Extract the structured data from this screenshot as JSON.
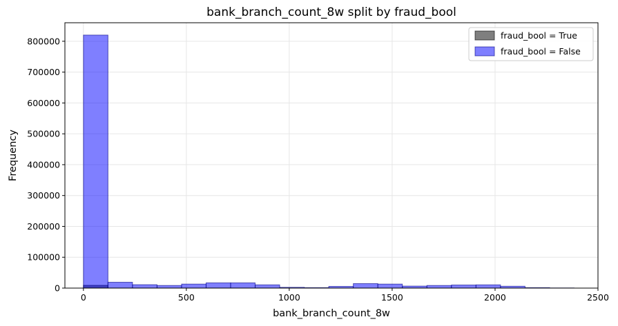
{
  "chart_data": {
    "type": "bar",
    "title": "bank_branch_count_8w split by fraud_bool",
    "xlabel": "bank_branch_count_8w",
    "ylabel": "Frequency",
    "xlim": [
      -90,
      2500
    ],
    "ylim": [
      0,
      860000
    ],
    "xticks": [
      0,
      500,
      1000,
      1500,
      2000,
      2500
    ],
    "yticks": [
      0,
      100000,
      200000,
      300000,
      400000,
      500000,
      600000,
      700000,
      800000
    ],
    "grid": true,
    "legend_position": "top-right",
    "bin_edges": [
      0,
      119.2,
      238.4,
      357.6,
      476.8,
      596,
      715.2,
      834.4,
      953.6,
      1072.8,
      1192,
      1311.2,
      1430.4,
      1549.6,
      1668.8,
      1788,
      1907.2,
      2026.4,
      2145.6,
      2264.8,
      2384
    ],
    "series": [
      {
        "name": "fraud_bool = True",
        "color": "#000000",
        "opacity": 0.5,
        "values": [
          9000,
          200,
          150,
          100,
          150,
          200,
          200,
          150,
          50,
          30,
          30,
          100,
          150,
          150,
          80,
          80,
          100,
          100,
          60,
          20
        ]
      },
      {
        "name": "fraud_bool = False",
        "color": "#0000ff",
        "opacity": 0.5,
        "values": [
          820000,
          19000,
          11000,
          8500,
          13000,
          17000,
          17000,
          10500,
          2500,
          1500,
          5500,
          14500,
          13000,
          6500,
          8500,
          10000,
          10500,
          6000,
          1500,
          500
        ]
      }
    ]
  }
}
